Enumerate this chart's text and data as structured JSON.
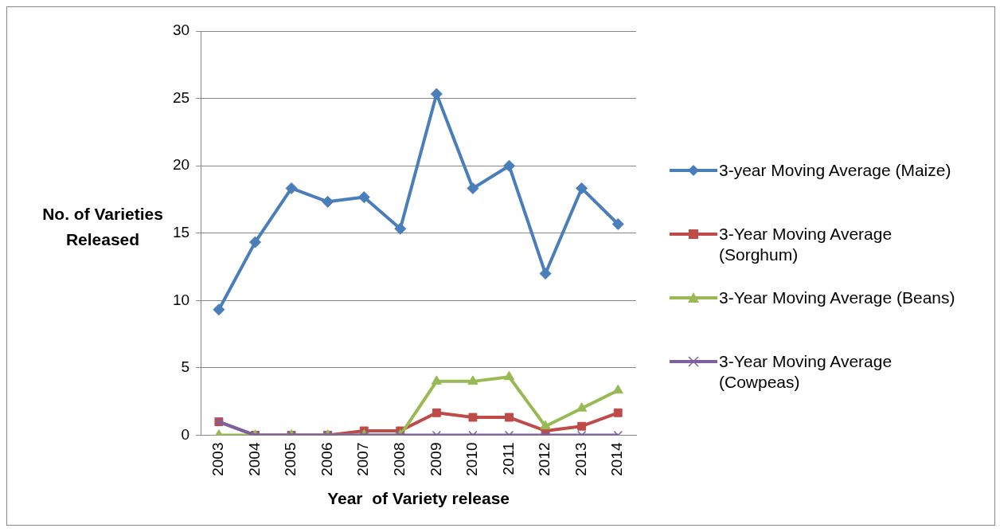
{
  "chart_data": {
    "type": "line",
    "xlabel": "Year  of Variety release",
    "ylabel": "No. of Varieties Released",
    "categories": [
      "2003",
      "2004",
      "2005",
      "2006",
      "2007",
      "2008",
      "2009",
      "2010",
      "2011",
      "2012",
      "2013",
      "2014"
    ],
    "series": [
      {
        "name": "3-year Moving Average (Maize)",
        "color": "#4a7ebb",
        "marker": "diamond",
        "values": [
          9.33,
          14.33,
          18.33,
          17.33,
          17.67,
          15.33,
          25.33,
          18.33,
          20,
          12,
          18.33,
          15.67
        ]
      },
      {
        "name": "3-Year Moving Average (Sorghum)",
        "color": "#be4b48",
        "marker": "square",
        "values": [
          1,
          0,
          0,
          0,
          0.33,
          0.33,
          1.67,
          1.33,
          1.33,
          0.33,
          0.67,
          1.67
        ]
      },
      {
        "name": "3-Year Moving Average (Beans)",
        "color": "#98b954",
        "marker": "triangle",
        "values": [
          0,
          0,
          0,
          0,
          0,
          0,
          4,
          4,
          4.33,
          0.67,
          2,
          3.33
        ]
      },
      {
        "name": "3-Year Moving Average (Cowpeas)",
        "color": "#7d60a0",
        "marker": "cross",
        "values": [
          1,
          0,
          0,
          0,
          0,
          0,
          0,
          0,
          0,
          0,
          0,
          0
        ]
      }
    ],
    "ylim": [
      0,
      30
    ],
    "yticks": [
      0,
      5,
      10,
      15,
      20,
      25,
      30
    ],
    "grid": "y",
    "legend": "right"
  }
}
